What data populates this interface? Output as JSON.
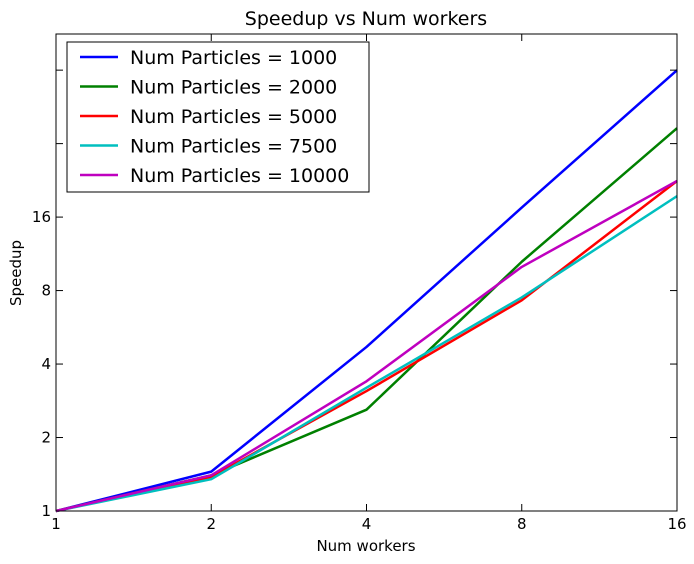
{
  "chart_data": {
    "type": "line",
    "title": "Speedup vs Num workers",
    "xlabel": "Num workers",
    "ylabel": "Speedup",
    "x_scale": "log2",
    "y_scale": "log2",
    "xlim": [
      1,
      16
    ],
    "ylim": [
      1,
      90
    ],
    "xticks": [
      1,
      2,
      4,
      8,
      16
    ],
    "xtick_labels": [
      "1",
      "2",
      "4",
      "8",
      "16"
    ],
    "yticks": [
      1,
      2,
      4,
      8,
      16
    ],
    "ytick_labels": [
      "1",
      "2",
      "4",
      "8",
      "16"
    ],
    "grid": false,
    "legend_position": "top-left",
    "x": [
      1,
      2,
      4,
      8,
      16
    ],
    "series": [
      {
        "name": "Num Particles = 1000",
        "color": "#0000ff",
        "values": [
          1,
          1.45,
          4.7,
          17.5,
          64
        ]
      },
      {
        "name": "Num Particles = 2000",
        "color": "#008000",
        "values": [
          1,
          1.4,
          2.6,
          10.5,
          37
        ]
      },
      {
        "name": "Num Particles = 5000",
        "color": "#ff0000",
        "values": [
          1,
          1.38,
          3.1,
          7.3,
          22.5
        ]
      },
      {
        "name": "Num Particles = 7500",
        "color": "#00bfbf",
        "values": [
          1,
          1.35,
          3.2,
          7.5,
          19.5
        ]
      },
      {
        "name": "Num Particles = 10000",
        "color": "#bf00bf",
        "values": [
          1,
          1.4,
          3.4,
          10,
          22.5
        ]
      }
    ]
  }
}
